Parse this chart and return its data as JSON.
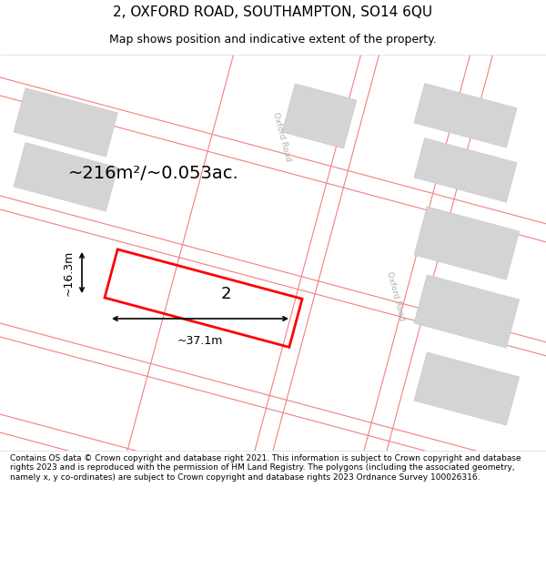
{
  "title": "2, OXFORD ROAD, SOUTHAMPTON, SO14 6QU",
  "subtitle": "Map shows position and indicative extent of the property.",
  "footer": "Contains OS data © Crown copyright and database right 2021. This information is subject to Crown copyright and database rights 2023 and is reproduced with the permission of HM Land Registry. The polygons (including the associated geometry, namely x, y co-ordinates) are subject to Crown copyright and database rights 2023 Ordnance Survey 100026316.",
  "area_text": "~216m²/~0.053ac.",
  "width_label": "~37.1m",
  "height_label": "~16.3m",
  "property_label": "2",
  "road_label": "Oxford Road",
  "road_color": "#f08080",
  "building_fill": "#d4d4d4",
  "building_edge": "#cccccc",
  "property_color": "#ff0000",
  "map_bg": "#ffffff",
  "title_fs": 11,
  "subtitle_fs": 9,
  "area_fs": 14,
  "label_fs": 13,
  "dim_fs": 9,
  "footer_fs": 6.5
}
